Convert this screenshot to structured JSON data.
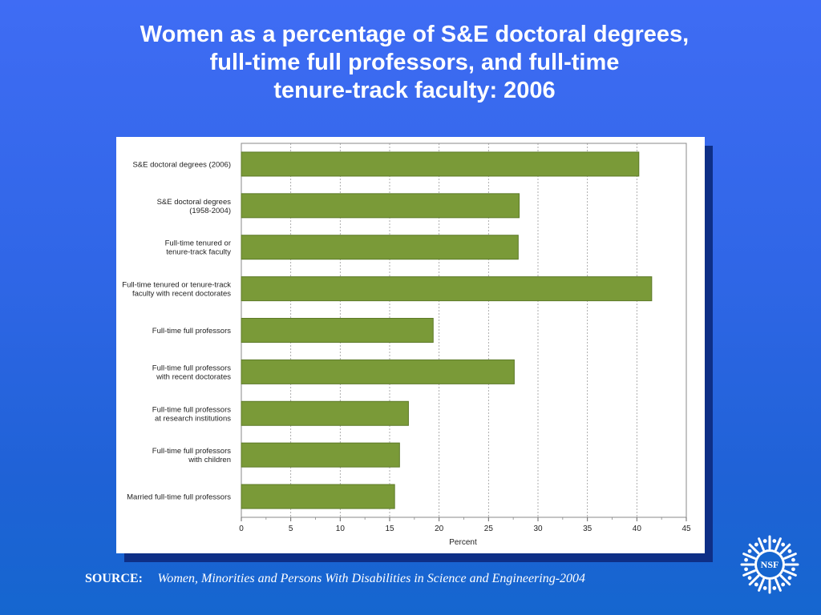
{
  "title_lines": [
    "Women as a percentage of S&E doctoral degrees,",
    "full-time full professors, and full-time",
    "tenure-track faculty: 2006"
  ],
  "source": {
    "label": "SOURCE:",
    "citation": "Women, Minorities and Persons With Disabilities in Science and Engineering-2004"
  },
  "logo": {
    "text": "NSF",
    "icon": "nsf-seal-icon"
  },
  "colors": {
    "background": "#2f66e6",
    "bar": "#7a9a38",
    "bar_border": "#5d7a28",
    "text": "#ffffff",
    "panel_shadow": "#0e2f86"
  },
  "chart_data": {
    "type": "bar",
    "orientation": "horizontal",
    "categories": [
      [
        "S&E doctoral degrees (2006)"
      ],
      [
        "S&E doctoral degrees",
        "(1958-2004)"
      ],
      [
        "Full-time tenured or",
        "tenure-track faculty"
      ],
      [
        "Full-time tenured or tenure-track",
        "faculty with recent doctorates"
      ],
      [
        "Full-time full professors"
      ],
      [
        "Full-time full professors",
        "with recent doctorates"
      ],
      [
        "Full-time full professors",
        "at research institutions"
      ],
      [
        "Full-time full professors",
        "with children"
      ],
      [
        "Married full-time full professors"
      ]
    ],
    "values": [
      40.2,
      28.1,
      28.0,
      41.5,
      19.4,
      27.6,
      16.9,
      16.0,
      15.5
    ],
    "xlabel": "Percent",
    "xlim": [
      0,
      45
    ],
    "xticks": [
      0,
      5,
      10,
      15,
      20,
      25,
      30,
      35,
      40,
      45
    ],
    "grid": "vertical dashed"
  }
}
